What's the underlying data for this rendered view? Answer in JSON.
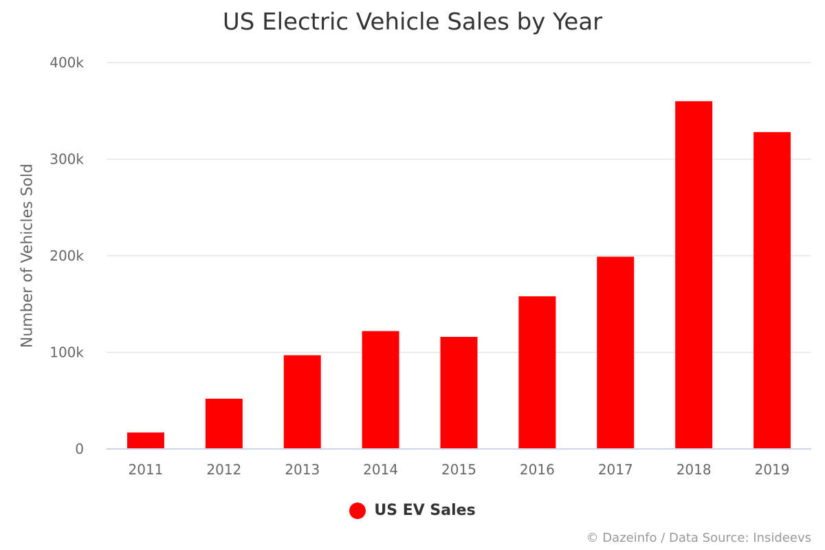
{
  "chart_data": {
    "type": "bar",
    "title": "US Electric Vehicle Sales by Year",
    "xlabel": "",
    "ylabel": "Number of Vehicles Sold",
    "categories": [
      "2011",
      "2012",
      "2013",
      "2014",
      "2015",
      "2016",
      "2017",
      "2018",
      "2019"
    ],
    "series": [
      {
        "name": "US EV Sales",
        "values": [
          17000,
          52000,
          97000,
          122000,
          116000,
          158000,
          199000,
          360000,
          328000
        ],
        "color": "#ff0000"
      }
    ],
    "ylim": [
      0,
      400000
    ],
    "yticks": [
      0,
      100000,
      200000,
      300000,
      400000
    ],
    "ytick_labels": [
      "0",
      "100k",
      "200k",
      "300k",
      "400k"
    ],
    "grid": true,
    "legend": "bottom-center"
  },
  "credit": "© Dazeinfo / Data Source: Insideevs"
}
